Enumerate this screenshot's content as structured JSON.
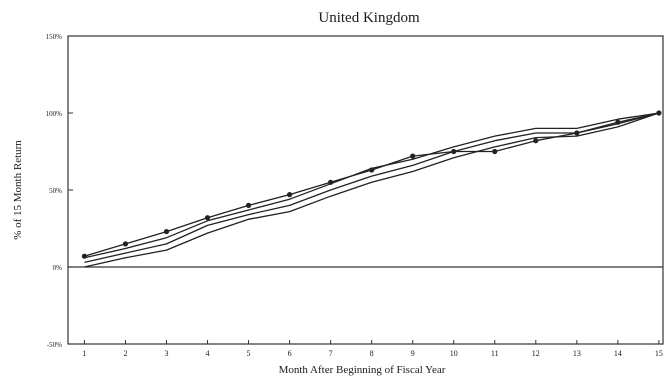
{
  "chart_data": {
    "type": "line",
    "title": "United Kingdom",
    "xlabel": "Month After Beginning of Fiscal Year",
    "ylabel": "% of 15 Month Return",
    "x": [
      1,
      2,
      3,
      4,
      5,
      6,
      7,
      8,
      9,
      10,
      11,
      12,
      13,
      14,
      15
    ],
    "x_tick_labels": [
      "1",
      "2",
      "3",
      "4",
      "5",
      "6",
      "7",
      "8",
      "9",
      "10",
      "11",
      "12",
      "13",
      "14",
      "15"
    ],
    "xlim": [
      0.6,
      15.1
    ],
    "ylim": [
      -50,
      150
    ],
    "y_ticks": [
      -50,
      0,
      50,
      100,
      150
    ],
    "y_tick_labels": [
      "-50%",
      "0%",
      "50%",
      "100%",
      "150%"
    ],
    "zero_line": true,
    "grid": false,
    "legend": "none",
    "line_color": "#222222",
    "series": [
      {
        "values": [
          7,
          15,
          23,
          32,
          40,
          47,
          55,
          63,
          72,
          75,
          75,
          82,
          87,
          94,
          100
        ],
        "markers": true
      },
      {
        "values": [
          6,
          12,
          19,
          30,
          37,
          44,
          54,
          64,
          70,
          78,
          85,
          90,
          90,
          96,
          100
        ],
        "markers": false
      },
      {
        "values": [
          3,
          9,
          15,
          27,
          34,
          40,
          50,
          59,
          66,
          75,
          82,
          87,
          87,
          93,
          100
        ],
        "markers": false
      },
      {
        "values": [
          0,
          6,
          11,
          22,
          31,
          36,
          46,
          55,
          62,
          71,
          78,
          84,
          85,
          91,
          100
        ],
        "markers": false
      }
    ]
  }
}
